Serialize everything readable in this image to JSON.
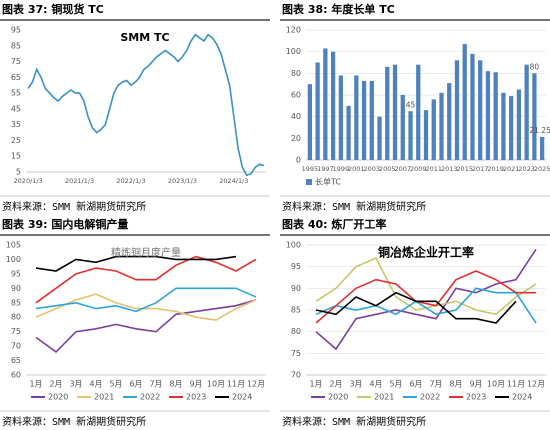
{
  "chart_data": [
    {
      "type": "line",
      "title": "图表 37: 铜现货 TC",
      "annotation": "SMM TC",
      "source": "资料来源：SMM 新湖期货研究所",
      "categories": [
        "2020/1/3",
        null,
        null,
        null,
        null,
        null,
        null,
        null,
        null,
        null,
        null,
        null,
        "2021/1/3",
        null,
        null,
        null,
        null,
        null,
        null,
        null,
        null,
        null,
        null,
        null,
        "2022/1/3",
        null,
        null,
        null,
        null,
        null,
        null,
        null,
        null,
        null,
        null,
        null,
        "2023/1/3",
        null,
        null,
        null,
        null,
        null,
        null,
        null,
        null,
        null,
        null,
        null,
        "2024/1/3",
        null,
        null,
        null,
        null,
        null,
        null,
        null
      ],
      "values": [
        58,
        62,
        70,
        65,
        58,
        55,
        52,
        50,
        53,
        55,
        57,
        55,
        55,
        50,
        40,
        33,
        30,
        32,
        35,
        45,
        55,
        60,
        62,
        63,
        60,
        62,
        65,
        70,
        72,
        75,
        78,
        80,
        82,
        80,
        78,
        75,
        78,
        82,
        88,
        92,
        90,
        88,
        92,
        90,
        86,
        80,
        70,
        60,
        40,
        20,
        8,
        3,
        4,
        8,
        10,
        9
      ],
      "color": "#3a8fc4",
      "ylim": [
        5,
        95
      ],
      "yticks": [
        5,
        15,
        25,
        35,
        45,
        55,
        65,
        75,
        85,
        95
      ],
      "grid": false
    },
    {
      "type": "bar",
      "title": "图表 38: 年度长单 TC",
      "source": "资料来源：SMM 新湖期货研究所",
      "categories": [
        "1995",
        null,
        "1997",
        null,
        "1999",
        null,
        "2001",
        null,
        "2003",
        null,
        "2005",
        null,
        "2007",
        null,
        "2009",
        null,
        "2011",
        null,
        "2013",
        null,
        "2015",
        null,
        "2017",
        null,
        "2019",
        null,
        "2021",
        null,
        "2023",
        null,
        "2025"
      ],
      "series": [
        {
          "name": "长单TC",
          "color": "#4f81bd",
          "values": [
            70,
            90,
            103,
            100,
            78,
            50,
            78,
            73,
            73,
            40,
            86,
            88,
            60,
            45,
            88,
            46,
            56,
            62,
            71,
            92,
            107,
            98,
            92,
            82,
            81,
            62,
            59,
            65,
            88,
            80,
            21.25
          ],
          "value_labels": [
            null,
            null,
            null,
            null,
            null,
            null,
            null,
            null,
            null,
            null,
            null,
            null,
            null,
            "45",
            null,
            null,
            null,
            null,
            null,
            null,
            null,
            null,
            null,
            null,
            null,
            null,
            null,
            null,
            null,
            "80",
            "21.25"
          ]
        }
      ],
      "ylim": [
        0,
        120
      ],
      "yticks": [
        0,
        20,
        40,
        60,
        80,
        100,
        120
      ],
      "grid": true,
      "legend": "bottom-left"
    },
    {
      "type": "line",
      "title": "图表 39: 国内电解铜产量",
      "annotation": "精炼铜月度产量",
      "source": "资料来源：SMM 新湖期货研究所",
      "categories": [
        "1月",
        "2月",
        "3月",
        "4月",
        "5月",
        "6月",
        "7月",
        "8月",
        "9月",
        "10月",
        "11月",
        "12月"
      ],
      "series": [
        {
          "name": "2020",
          "color": "#7b3f9e",
          "values": [
            73,
            68,
            75,
            76,
            77.5,
            76,
            75,
            81,
            82,
            83,
            84,
            86
          ]
        },
        {
          "name": "2021",
          "color": "#e4c26a",
          "values": [
            80,
            83,
            86,
            88,
            85,
            83,
            83,
            82,
            80,
            79,
            83,
            86
          ]
        },
        {
          "name": "2022",
          "color": "#2fa4d8",
          "values": [
            83,
            84,
            85,
            83,
            84,
            82,
            85,
            90,
            90,
            90,
            90,
            87
          ]
        },
        {
          "name": "2023",
          "color": "#e0302f",
          "values": [
            85,
            90,
            95,
            97,
            96,
            93,
            93,
            98,
            101,
            99,
            96,
            100
          ]
        },
        {
          "name": "2024",
          "color": "#000000",
          "values": [
            97,
            96,
            100,
            99,
            101,
            101,
            101,
            100,
            100,
            100,
            101,
            null
          ]
        }
      ],
      "ylim": [
        60,
        105
      ],
      "yticks": [
        60,
        65,
        70,
        75,
        80,
        85,
        90,
        95,
        100,
        105
      ],
      "grid": false,
      "legend": "bottom"
    },
    {
      "type": "line",
      "title": "图表 40: 炼厂开工率",
      "annotation": "铜冶炼企业开工率",
      "source": "资料来源：SMM 新湖期货研究所",
      "categories": [
        "1月",
        "2月",
        "3月",
        "4月",
        "5月",
        "6月",
        "7月",
        "8月",
        "9月",
        "10月",
        "11月",
        "12月"
      ],
      "series": [
        {
          "name": "2020",
          "color": "#7b3f9e",
          "values": [
            80,
            76,
            83,
            84,
            85,
            84,
            83,
            90,
            89,
            91,
            92,
            99
          ]
        },
        {
          "name": "2021",
          "color": "#c8c46a",
          "values": [
            87,
            90,
            95,
            97,
            88,
            85,
            86,
            87,
            85,
            84,
            88,
            91
          ]
        },
        {
          "name": "2022",
          "color": "#2fa4d8",
          "values": [
            84,
            86,
            85,
            86,
            84,
            87,
            84,
            85,
            90,
            89,
            89,
            82
          ]
        },
        {
          "name": "2023",
          "color": "#e0302f",
          "values": [
            82,
            86,
            90,
            92,
            91,
            87,
            86,
            92,
            94,
            92,
            89,
            89
          ]
        },
        {
          "name": "2024",
          "color": "#000000",
          "values": [
            85,
            84,
            88,
            86,
            89,
            87,
            87,
            83,
            83,
            82,
            87,
            null
          ]
        }
      ],
      "ylim": [
        70,
        100
      ],
      "yticks": [
        70,
        75,
        80,
        85,
        90,
        95,
        100
      ],
      "grid": true,
      "legend": "bottom"
    }
  ]
}
